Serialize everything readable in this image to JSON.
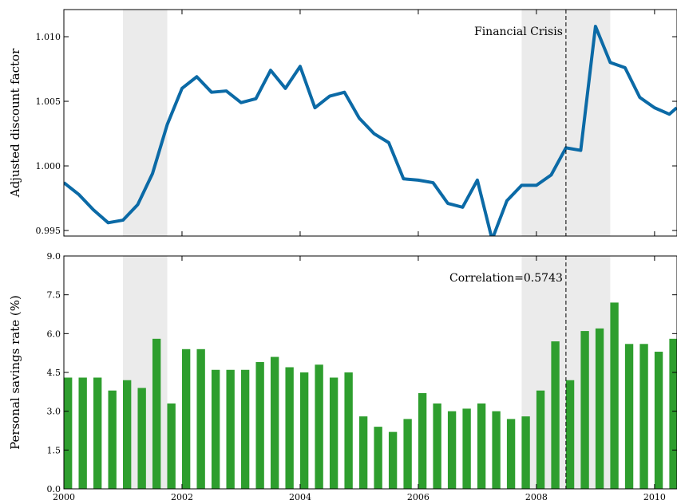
{
  "chart_data": [
    {
      "type": "line",
      "ylabel": "Adjusted discount factor",
      "color": "#0b6aa6",
      "x": [
        2000,
        2000.25,
        2000.5,
        2000.75,
        2001,
        2001.25,
        2001.5,
        2001.75,
        2002,
        2002.25,
        2002.5,
        2002.75,
        2003,
        2003.25,
        2003.5,
        2003.75,
        2004,
        2004.25,
        2004.5,
        2004.75,
        2005,
        2005.25,
        2005.5,
        2005.75,
        2006,
        2006.25,
        2006.5,
        2006.75,
        2007,
        2007.25,
        2007.5,
        2007.75,
        2008,
        2008.25,
        2008.5,
        2008.75,
        2009,
        2009.25,
        2009.5,
        2009.75,
        2010,
        2010.25,
        2010.375
      ],
      "values": [
        0.9987,
        0.9978,
        0.9966,
        0.9956,
        0.9958,
        0.997,
        0.9994,
        1.0032,
        1.006,
        1.0069,
        1.0057,
        1.0058,
        1.0049,
        1.0052,
        1.0074,
        1.006,
        1.0077,
        1.0045,
        1.0054,
        1.0057,
        1.0037,
        1.0025,
        1.0018,
        0.999,
        0.9989,
        0.9987,
        0.9971,
        0.9968,
        0.9989,
        0.9943,
        0.9973,
        0.9985,
        0.9985,
        0.9993,
        1.0014,
        1.0012,
        1.0108,
        1.008,
        1.0076,
        1.0053,
        1.0045,
        1.004,
        1.0045
      ],
      "xlim": [
        2000,
        2010.38
      ],
      "xticks": [
        2000,
        2002,
        2004,
        2006,
        2008,
        2010
      ],
      "ylim": [
        0.99457,
        1.0121
      ],
      "yticks": [
        {
          "value": 0.995,
          "label": "0.995"
        },
        {
          "value": 1.0,
          "label": "1.000"
        },
        {
          "value": 1.005,
          "label": "1.005"
        },
        {
          "value": 1.01,
          "label": "1.010"
        }
      ],
      "shaded_spans": [
        [
          2001,
          2001.75
        ],
        [
          2007.75,
          2009.25
        ]
      ],
      "vline": 2008.5,
      "annotation": "Financial Crisis"
    },
    {
      "type": "bar",
      "ylabel": "Personal savings rate (%)",
      "color": "#2e9e2e",
      "x": [
        2000,
        2000.25,
        2000.5,
        2000.75,
        2001,
        2001.25,
        2001.5,
        2001.75,
        2002,
        2002.25,
        2002.5,
        2002.75,
        2003,
        2003.25,
        2003.5,
        2003.75,
        2004,
        2004.25,
        2004.5,
        2004.75,
        2005,
        2005.25,
        2005.5,
        2005.75,
        2006,
        2006.25,
        2006.5,
        2006.75,
        2007,
        2007.25,
        2007.5,
        2007.75,
        2008,
        2008.25,
        2008.5,
        2008.75,
        2009,
        2009.25,
        2009.5,
        2009.75,
        2010,
        2010.25
      ],
      "values": [
        4.3,
        4.3,
        4.3,
        3.8,
        4.2,
        3.9,
        5.8,
        3.3,
        5.4,
        5.4,
        4.6,
        4.6,
        4.6,
        4.9,
        5.1,
        4.7,
        4.5,
        4.8,
        4.3,
        4.5,
        2.8,
        2.4,
        2.2,
        2.7,
        3.7,
        3.3,
        3.0,
        3.1,
        3.3,
        3.0,
        2.7,
        2.8,
        3.8,
        5.7,
        4.2,
        6.1,
        6.2,
        7.2,
        5.6,
        5.6,
        5.3,
        5.8
      ],
      "xlim": [
        2000,
        2010.38
      ],
      "xticks": [
        2000,
        2002,
        2004,
        2006,
        2008,
        2010
      ],
      "ylim": [
        0,
        9
      ],
      "yticks": [
        {
          "value": 0,
          "label": "0.0"
        },
        1.5,
        {
          "value": 3,
          "label": "3.0"
        },
        4.5,
        {
          "value": 6,
          "label": "6.0"
        },
        7.5,
        {
          "value": 9,
          "label": "9.0"
        }
      ],
      "shaded_spans": [
        [
          2001,
          2001.75
        ],
        [
          2007.75,
          2009.25
        ]
      ],
      "vline": 2008.5,
      "annotation": "Correlation=0.5743"
    }
  ]
}
